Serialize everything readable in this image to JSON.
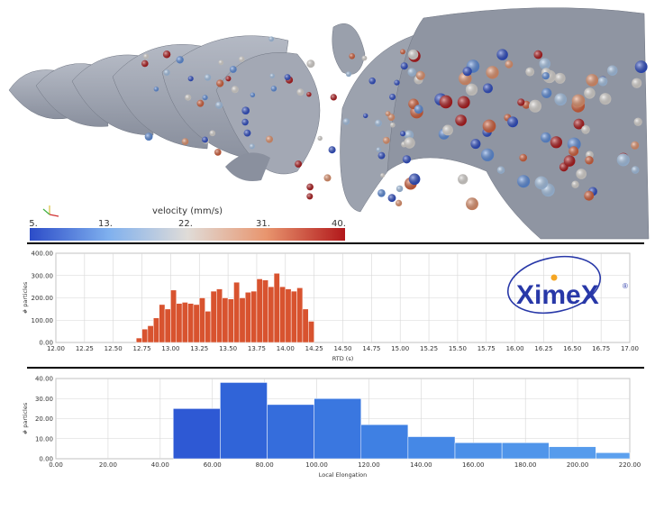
{
  "render": {
    "colorbar": {
      "title": "velocity (mm/s)",
      "ticks": [
        "5.",
        "13.",
        "22.",
        "31.",
        "40."
      ],
      "colors": [
        "#2c4cc8",
        "#7fb0ee",
        "#e0dcd8",
        "#e8956e",
        "#b2181b"
      ]
    }
  },
  "logo": {
    "text": "XimeX",
    "mark": "®",
    "color": "#2838a8",
    "dot_color": "#f5a623"
  },
  "chart_data": [
    {
      "type": "bar",
      "xlabel": "RTD (s)",
      "ylabel": "# particles",
      "xlim": [
        12.0,
        17.0
      ],
      "ylim": [
        0,
        400
      ],
      "xticks": [
        "12.00",
        "12.25",
        "12.50",
        "12.75",
        "13.00",
        "13.25",
        "13.50",
        "13.75",
        "14.00",
        "14.25",
        "14.50",
        "14.75",
        "15.00",
        "15.25",
        "15.50",
        "15.75",
        "16.00",
        "16.25",
        "16.50",
        "16.75",
        "17.00"
      ],
      "yticks": [
        "0.00",
        "100.00",
        "200.00",
        "300.00",
        "400.00"
      ],
      "grid": true,
      "color": "#d8532f",
      "bin_width": 0.05,
      "bins": [
        {
          "x": 12.7,
          "y": 20
        },
        {
          "x": 12.75,
          "y": 60
        },
        {
          "x": 12.8,
          "y": 75
        },
        {
          "x": 12.85,
          "y": 110
        },
        {
          "x": 12.9,
          "y": 170
        },
        {
          "x": 12.95,
          "y": 150
        },
        {
          "x": 13.0,
          "y": 235
        },
        {
          "x": 13.05,
          "y": 175
        },
        {
          "x": 13.1,
          "y": 180
        },
        {
          "x": 13.15,
          "y": 175
        },
        {
          "x": 13.2,
          "y": 170
        },
        {
          "x": 13.25,
          "y": 200
        },
        {
          "x": 13.3,
          "y": 140
        },
        {
          "x": 13.35,
          "y": 230
        },
        {
          "x": 13.4,
          "y": 240
        },
        {
          "x": 13.45,
          "y": 200
        },
        {
          "x": 13.5,
          "y": 195
        },
        {
          "x": 13.55,
          "y": 270
        },
        {
          "x": 13.6,
          "y": 200
        },
        {
          "x": 13.65,
          "y": 225
        },
        {
          "x": 13.7,
          "y": 230
        },
        {
          "x": 13.75,
          "y": 285
        },
        {
          "x": 13.8,
          "y": 280
        },
        {
          "x": 13.85,
          "y": 250
        },
        {
          "x": 13.9,
          "y": 310
        },
        {
          "x": 13.95,
          "y": 250
        },
        {
          "x": 14.0,
          "y": 240
        },
        {
          "x": 14.05,
          "y": 230
        },
        {
          "x": 14.1,
          "y": 245
        },
        {
          "x": 14.15,
          "y": 150
        },
        {
          "x": 14.2,
          "y": 95
        }
      ]
    },
    {
      "type": "bar",
      "xlabel": "Local Elongation",
      "ylabel": "# particles",
      "xlim": [
        0,
        220
      ],
      "ylim": [
        0,
        40
      ],
      "xticks": [
        "0.00",
        "20.00",
        "40.00",
        "60.00",
        "80.00",
        "100.00",
        "120.00",
        "140.00",
        "160.00",
        "180.00",
        "200.00",
        "220.00"
      ],
      "yticks": [
        "0.00",
        "10.00",
        "20.00",
        "30.00",
        "40.00"
      ],
      "grid": true,
      "bins": [
        {
          "x0": 45,
          "x1": 63,
          "y": 25,
          "color": "#2e59d4"
        },
        {
          "x0": 63,
          "x1": 81,
          "y": 38,
          "color": "#3064d8"
        },
        {
          "x0": 81,
          "x1": 99,
          "y": 27,
          "color": "#356ddc"
        },
        {
          "x0": 99,
          "x1": 117,
          "y": 30,
          "color": "#3a77e0"
        },
        {
          "x0": 117,
          "x1": 135,
          "y": 17,
          "color": "#3f80e3"
        },
        {
          "x0": 135,
          "x1": 153,
          "y": 11,
          "color": "#4588e6"
        },
        {
          "x0": 153,
          "x1": 171,
          "y": 8,
          "color": "#4b8fe8"
        },
        {
          "x0": 171,
          "x1": 189,
          "y": 8,
          "color": "#5095ea"
        },
        {
          "x0": 189,
          "x1": 207,
          "y": 6,
          "color": "#569bec"
        },
        {
          "x0": 207,
          "x1": 220,
          "y": 3,
          "color": "#5ca0ee"
        }
      ]
    }
  ]
}
